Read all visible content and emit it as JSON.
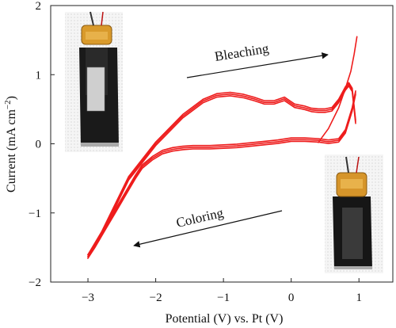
{
  "chart_data": {
    "type": "line",
    "xlabel": "Potential (V) vs. Pt (V)",
    "ylabel_main": "Current (mA cm",
    "ylabel_exp": "−2",
    "ylabel_close": ")",
    "xlim": [
      -3.55,
      1.5
    ],
    "ylim": [
      -2,
      2
    ],
    "xticks": [
      -3,
      -2,
      -1,
      0,
      1
    ],
    "xtick_labels": [
      "−3",
      "−2",
      "−1",
      "0",
      "1"
    ],
    "yticks": [
      -2,
      -1,
      0,
      1,
      2
    ],
    "ytick_labels": [
      "−2",
      "−1",
      "0",
      "1",
      "2"
    ],
    "grid": false,
    "line_color": "#ee1c1c",
    "annotations": {
      "bleaching": "Bleaching",
      "coloring": "Coloring"
    },
    "photos": [
      {
        "name": "bleached-device-photo"
      },
      {
        "name": "colored-device-photo"
      }
    ],
    "series": [
      {
        "x": [
          -3.0,
          -2.9,
          -2.75,
          -2.6,
          -2.45,
          -2.3,
          -2.2,
          -2.05,
          -1.9,
          -1.75,
          -1.6,
          -1.45,
          -1.3,
          -1.2,
          -1.0,
          -0.8,
          -0.6,
          -0.4,
          -0.2,
          0.0,
          0.2,
          0.4,
          0.55,
          0.7,
          0.8,
          0.9,
          0.95
        ],
        "y": [
          -1.63,
          -1.48,
          -1.23,
          -0.98,
          -0.73,
          -0.48,
          -0.33,
          -0.21,
          -0.12,
          -0.08,
          -0.06,
          -0.05,
          -0.05,
          -0.05,
          -0.04,
          -0.03,
          -0.01,
          0.01,
          0.03,
          0.06,
          0.06,
          0.05,
          0.03,
          0.05,
          0.18,
          0.5,
          0.74
        ]
      },
      {
        "x": [
          0.95,
          0.9,
          0.85,
          0.8,
          0.7,
          0.6,
          0.5,
          0.4,
          0.3,
          0.2,
          0.05,
          -0.1,
          -0.25,
          -0.4,
          -0.55,
          -0.7,
          -0.9,
          -1.1,
          -1.3,
          -1.6,
          -2.0,
          -2.4,
          -2.8,
          -3.0
        ],
        "y": [
          0.32,
          0.78,
          0.86,
          0.8,
          0.62,
          0.5,
          0.48,
          0.48,
          0.49,
          0.52,
          0.55,
          0.65,
          0.6,
          0.6,
          0.65,
          0.69,
          0.72,
          0.7,
          0.62,
          0.4,
          0.0,
          -0.5,
          -1.3,
          -1.63
        ]
      },
      {
        "x": [
          0.4,
          0.55,
          0.7,
          0.8,
          0.88,
          0.93,
          0.97
        ],
        "y": [
          0.02,
          0.22,
          0.52,
          0.8,
          1.05,
          1.3,
          1.55
        ]
      }
    ]
  }
}
